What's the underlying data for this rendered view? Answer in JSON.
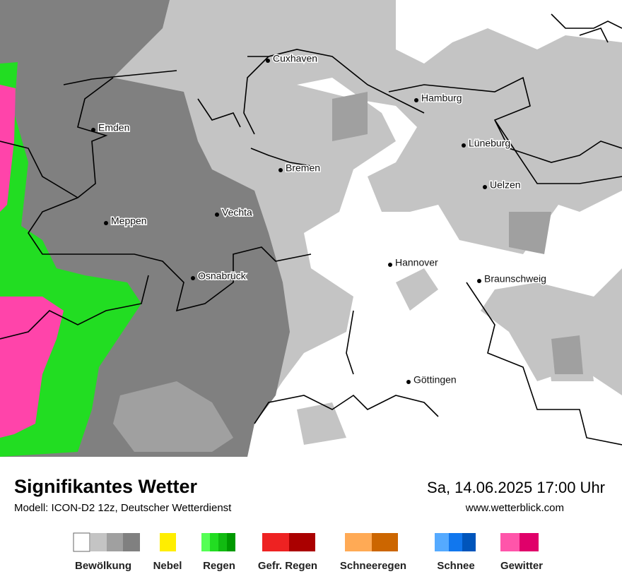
{
  "map": {
    "cities": [
      {
        "name": "Cuxhaven"
      },
      {
        "name": "Hamburg"
      },
      {
        "name": "Emden"
      },
      {
        "name": "Lüneburg"
      },
      {
        "name": "Bremen"
      },
      {
        "name": "Uelzen"
      },
      {
        "name": "Vechta"
      },
      {
        "name": "Meppen"
      },
      {
        "name": "Hannover"
      },
      {
        "name": "Osnabrück"
      },
      {
        "name": "Braunschweig"
      },
      {
        "name": "Göttingen"
      }
    ]
  },
  "footer": {
    "title": "Signifikantes Wetter",
    "subtitle": "Modell: ICON-D2 12z, Deutscher Wetterdienst",
    "datetime": "Sa, 14.06.2025 17:00 Uhr",
    "website": "www.wetterblick.com"
  },
  "legend": {
    "items": [
      {
        "label": "Bewölkung"
      },
      {
        "label": "Nebel"
      },
      {
        "label": "Regen"
      },
      {
        "label": "Gefr. Regen"
      },
      {
        "label": "Schneeregen"
      },
      {
        "label": "Schnee"
      },
      {
        "label": "Gewitter"
      }
    ]
  }
}
